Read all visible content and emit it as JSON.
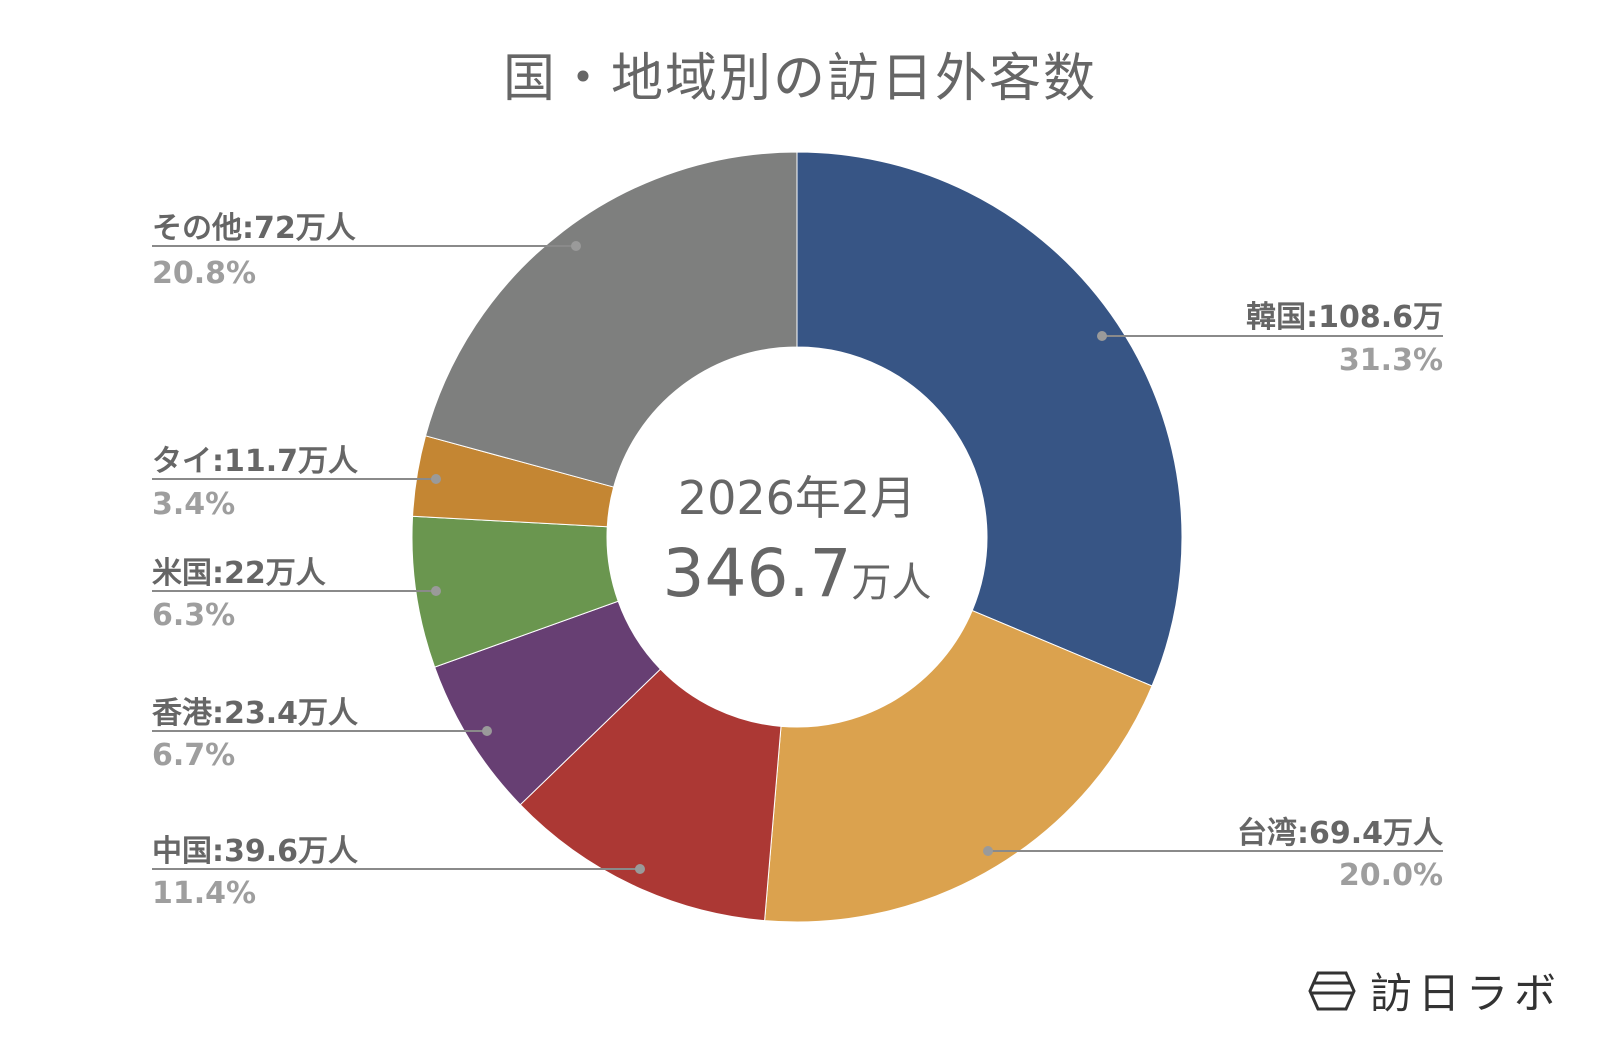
{
  "title": "国・地域別の訪日外客数",
  "center": {
    "period": "2026年2月",
    "total": "346.7",
    "total_unit": "万人"
  },
  "brand": {
    "name": "訪日ラボ",
    "icon": "hexagon-logo-icon"
  },
  "slices": [
    {
      "label": "韓国:108.6万",
      "pct": "31.3%",
      "color": "#375585"
    },
    {
      "label": "台湾:69.4万人",
      "pct": "20.0%",
      "color": "#dba24e"
    },
    {
      "label": "中国:39.6万人",
      "pct": "11.4%",
      "color": "#ac3834"
    },
    {
      "label": "香港:23.4万人",
      "pct": "6.7%",
      "color": "#673f73"
    },
    {
      "label": "米国:22万人",
      "pct": "6.3%",
      "color": "#6a964f"
    },
    {
      "label": "タイ:11.7万人",
      "pct": "3.4%",
      "color": "#c48633"
    },
    {
      "label": "その他:72万人",
      "pct": "20.8%",
      "color": "#7e7f7e"
    }
  ],
  "chart_data": {
    "type": "pie",
    "subtype": "donut",
    "title": "国・地域別の訪日外客数",
    "center_label": "2026年2月 346.7万人",
    "unit": "万人",
    "categories": [
      "韓国",
      "台湾",
      "中国",
      "香港",
      "米国",
      "タイ",
      "その他"
    ],
    "values": [
      108.6,
      69.4,
      39.6,
      23.4,
      22,
      11.7,
      72
    ],
    "percentages": [
      31.3,
      20.0,
      11.4,
      6.7,
      6.3,
      3.4,
      20.8
    ],
    "colors": [
      "#375585",
      "#dba24e",
      "#ac3834",
      "#673f73",
      "#6a964f",
      "#c48633",
      "#7e7f7e"
    ],
    "total": 346.7,
    "start_angle": "12 o'clock, clockwise",
    "legend": "none (leader-line labels)"
  }
}
